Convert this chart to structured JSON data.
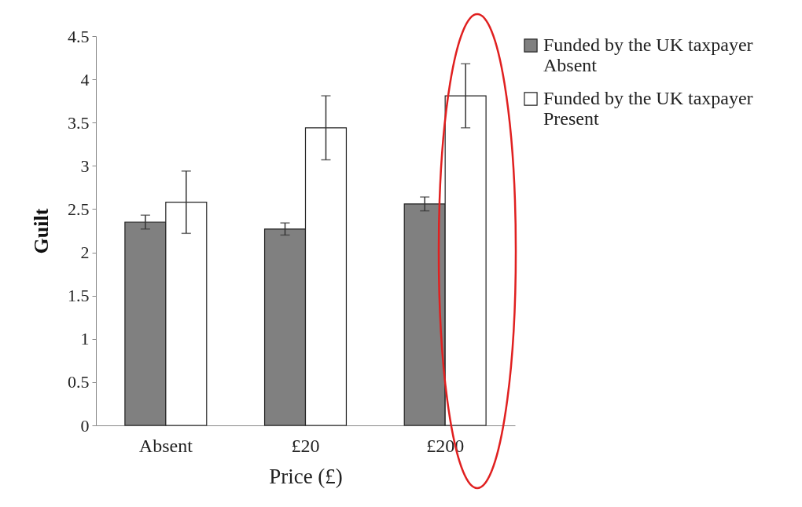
{
  "chart_data": {
    "type": "bar",
    "xlabel": "Price (£)",
    "ylabel": "Guilt",
    "categories": [
      "Absent",
      "£20",
      "£200"
    ],
    "series": [
      {
        "name": "Funded by the UK taxpayer Absent",
        "color": "#808080",
        "values": [
          2.35,
          2.27,
          2.56
        ],
        "errors": [
          0.08,
          0.07,
          0.08
        ]
      },
      {
        "name": "Funded by the UK taxpayer Present",
        "color": "#ffffff",
        "values": [
          2.58,
          3.44,
          3.81
        ],
        "errors": [
          0.36,
          0.37,
          0.37
        ]
      }
    ],
    "ylim": [
      0,
      4.5
    ],
    "yticks": [
      0,
      0.5,
      1,
      1.5,
      2,
      2.5,
      3,
      3.5,
      4,
      4.5
    ],
    "legend": "right",
    "grid": false
  }
}
